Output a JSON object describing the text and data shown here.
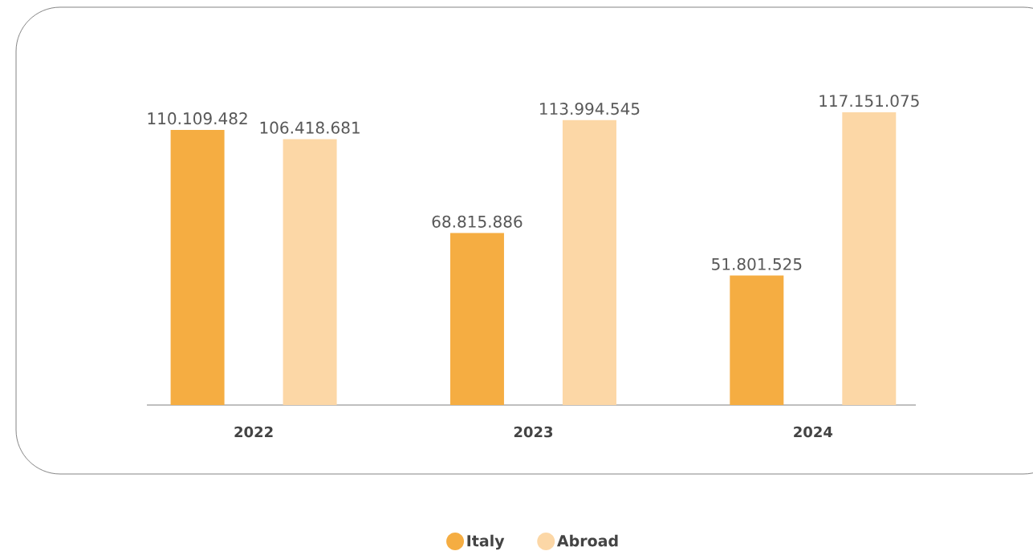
{
  "chart_data": {
    "type": "bar",
    "categories": [
      "2022",
      "2023",
      "2024"
    ],
    "series": [
      {
        "name": "Italy",
        "color": "#f5ad42",
        "values": [
          110109482,
          68815886,
          51801525
        ],
        "value_labels": [
          "110.109.482",
          "68.815.886",
          "51.801.525"
        ]
      },
      {
        "name": "Abroad",
        "color": "#fcd7a6",
        "values": [
          106418681,
          113994545,
          117151075
        ],
        "value_labels": [
          "106.418.681",
          "113.994.545",
          "117.151.075"
        ]
      }
    ],
    "legend": "bottom"
  }
}
